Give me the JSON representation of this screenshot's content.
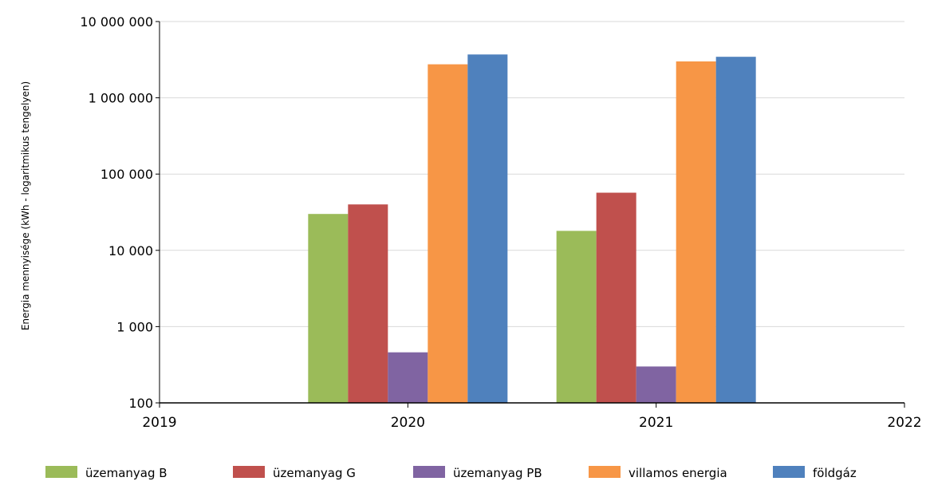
{
  "chart_data": {
    "type": "bar",
    "title": "",
    "xlabel": "",
    "ylabel": "Energia mennyisége (kWh - logaritmikus tengelyen)",
    "yscale": "log",
    "ylim": [
      100,
      10000000
    ],
    "y_ticks": [
      {
        "value": 100,
        "label": "100"
      },
      {
        "value": 1000,
        "label": "1 000"
      },
      {
        "value": 10000,
        "label": "10 000"
      },
      {
        "value": 100000,
        "label": "100 000"
      },
      {
        "value": 1000000,
        "label": "1 000 000"
      },
      {
        "value": 10000000,
        "label": "10 000 000"
      }
    ],
    "x_ticks": [
      "2019",
      "2020",
      "2021",
      "2022"
    ],
    "categories": [
      "2020",
      "2021"
    ],
    "grid": true,
    "legend_position": "bottom",
    "series": [
      {
        "name": "üzemanyag B",
        "color": "#9bbb59",
        "values": [
          30000,
          18000
        ]
      },
      {
        "name": "üzemanyag G",
        "color": "#c0504d",
        "values": [
          40000,
          57000
        ]
      },
      {
        "name": "üzemanyag PB",
        "color": "#8064a2",
        "values": [
          460,
          300
        ]
      },
      {
        "name": "villamos energia",
        "color": "#f79646",
        "values": [
          2750000,
          3000000
        ]
      },
      {
        "name": "földgáz",
        "color": "#4f81bd",
        "values": [
          3700000,
          3450000
        ]
      }
    ]
  }
}
